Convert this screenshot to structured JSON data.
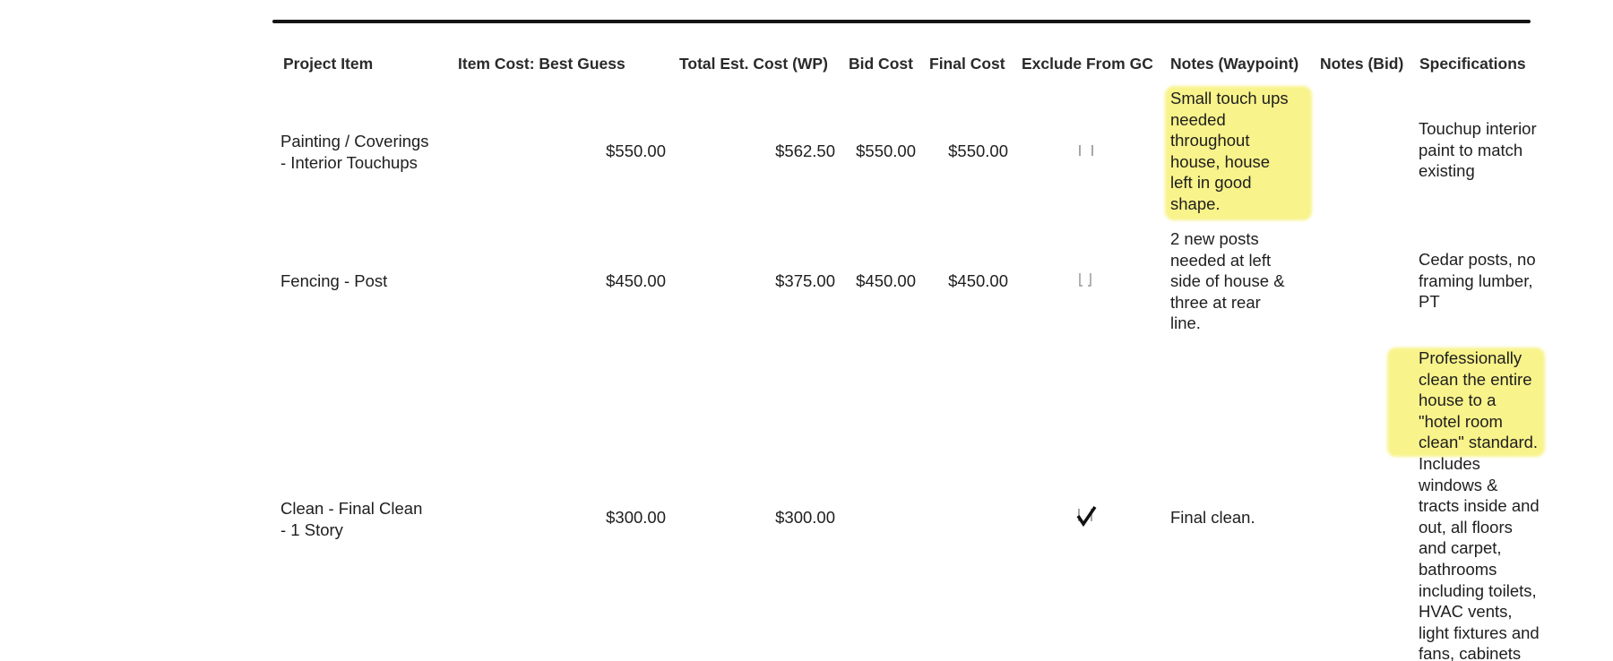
{
  "table": {
    "columns": [
      "Project Item",
      "Item Cost: Best Guess",
      "Total Est. Cost (WP)",
      "Bid Cost",
      "Final Cost",
      "Exclude From GC",
      "Notes (Waypoint)",
      "Notes (Bid)",
      "Specifications"
    ],
    "rows": [
      {
        "project_item": "Painting / Coverings\n- Interior Touchups",
        "item_cost": "$550.00",
        "total_est_cost": "$562.50",
        "bid_cost": "$550.00",
        "final_cost": "$550.00",
        "notes_waypoint": "Small touch ups\nneeded\nthroughout\nhouse, house\nleft in good\nshape.",
        "specifications": "Touchup interior\npaint to match\nexisting"
      },
      {
        "project_item": "Fencing - Post",
        "item_cost": "$450.00",
        "total_est_cost": "$375.00",
        "bid_cost": "$450.00",
        "final_cost": "$450.00",
        "notes_waypoint": "2 new posts\nneeded at left\nside of house &\nthree at rear\nline.",
        "specifications": "Cedar posts, no\nframing lumber,\nPT"
      },
      {
        "project_item": "Clean - Final Clean\n- 1 Story",
        "item_cost": "$300.00",
        "total_est_cost": "$300.00",
        "notes_waypoint": "Final clean.",
        "specifications": "Professionally\nclean the entire\nhouse to a\n\"hotel room\nclean\" standard.\nIncludes\nwindows &\ntracts inside and\nout, all floors\nand carpet,\nbathrooms\nincluding toilets,\nHVAC vents,\nlight fixtures and\nfans, cabinets"
      }
    ]
  }
}
